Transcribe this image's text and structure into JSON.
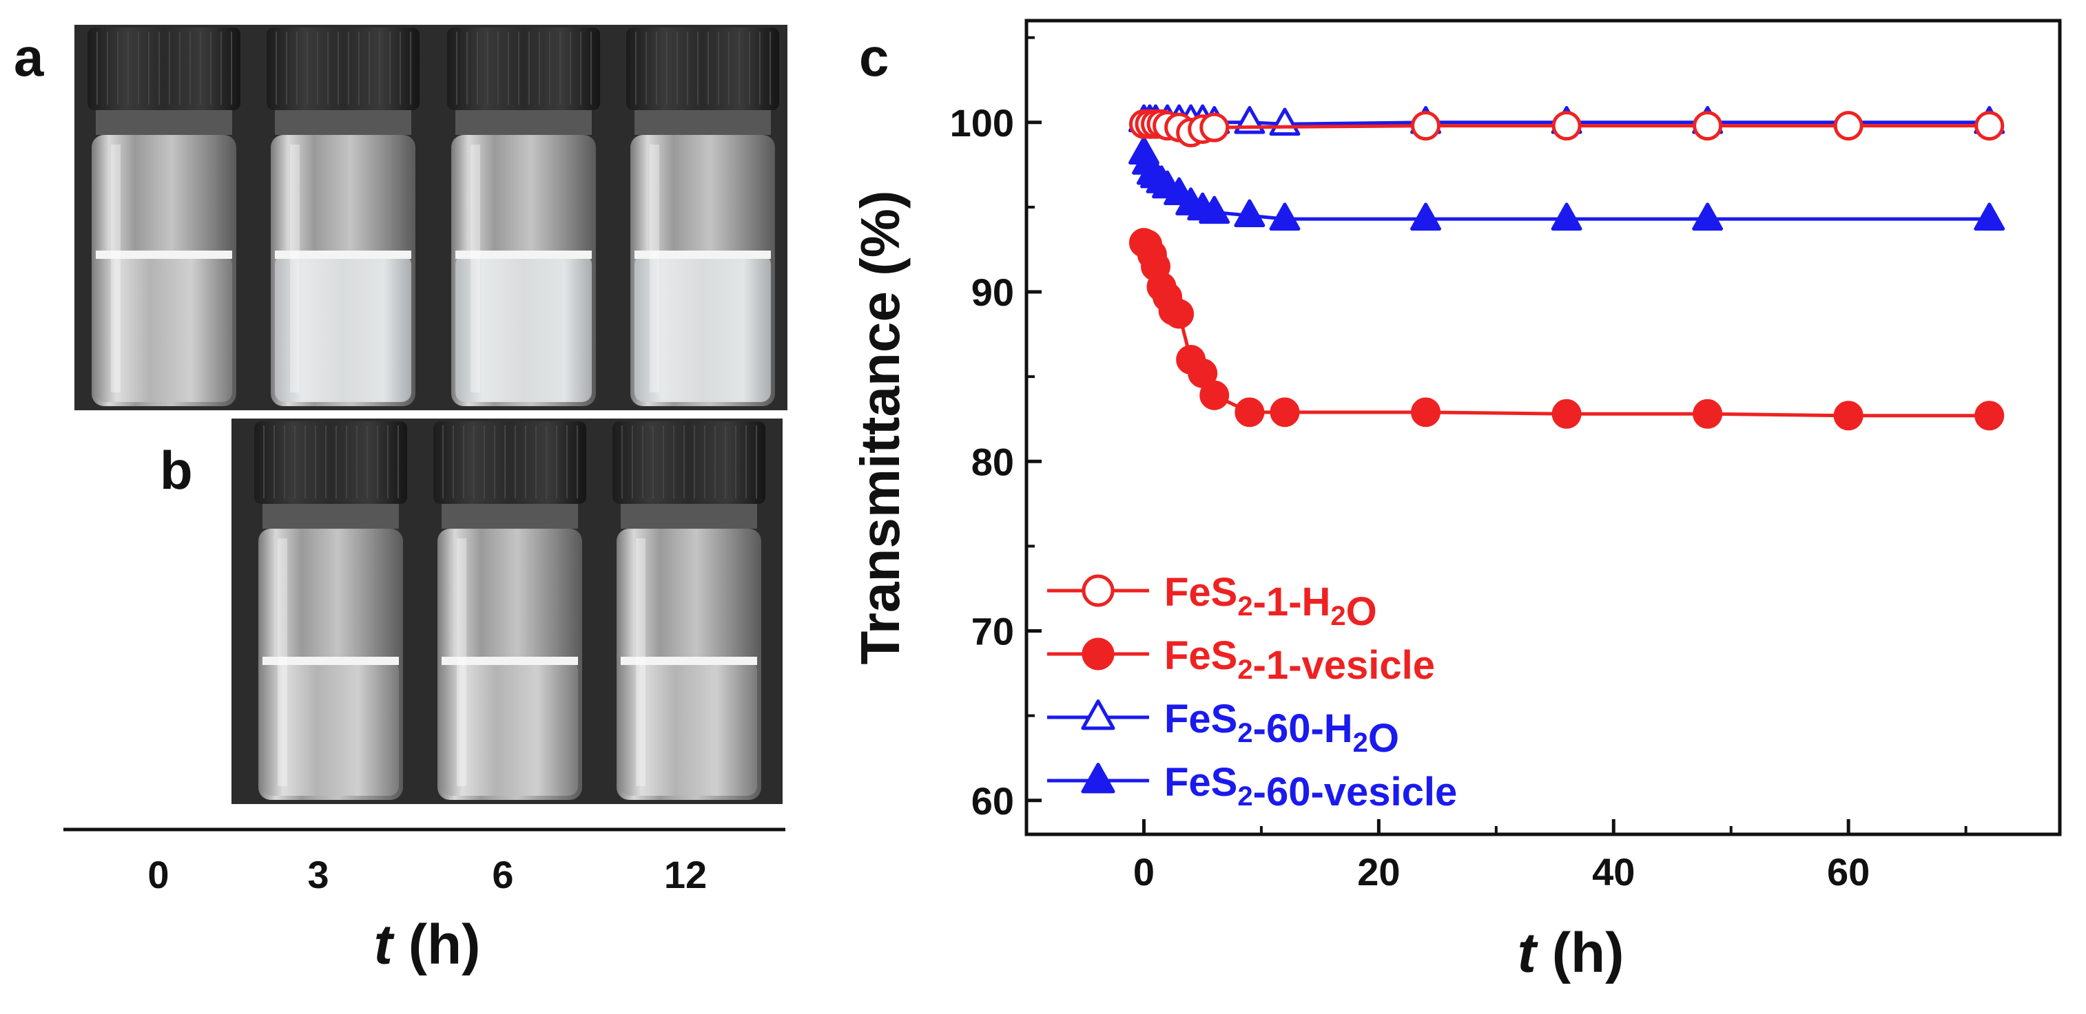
{
  "panels": {
    "a": {
      "label": "a",
      "vial_times": [
        "0",
        "3",
        "6",
        "12"
      ]
    },
    "b": {
      "label": "b",
      "vial_times": [
        "3",
        "6",
        "12"
      ]
    },
    "c": {
      "label": "c"
    }
  },
  "photo_axis": {
    "ticks": [
      "0",
      "3",
      "6",
      "12"
    ],
    "xlabel_var": "t",
    "xlabel_unit": " (h)"
  },
  "chart_data": {
    "type": "line",
    "title": "",
    "xlabel_var": "t",
    "xlabel_unit": " (h)",
    "ylabel": "Transmittance (%)",
    "xlim": [
      -10,
      78
    ],
    "ylim": [
      58,
      106
    ],
    "xticks": [
      0,
      20,
      40,
      60
    ],
    "yticks": [
      60,
      70,
      80,
      90,
      100
    ],
    "series": [
      {
        "name_main": "FeS",
        "name_sub": "2",
        "name_rest": "-1-H",
        "name_sub2": "2",
        "name_end": "O",
        "color": "#ee2222",
        "marker": "circle-open",
        "x": [
          0,
          0.5,
          1,
          1.5,
          2,
          3,
          4,
          5,
          6,
          24,
          36,
          48,
          60,
          72
        ],
        "y": [
          99.9,
          99.9,
          99.9,
          99.9,
          99.8,
          99.7,
          99.4,
          99.6,
          99.7,
          99.8,
          99.8,
          99.8,
          99.8,
          99.8
        ]
      },
      {
        "name_main": "FeS",
        "name_sub": "2",
        "name_rest": "-1-vesicle",
        "name_sub2": "",
        "name_end": "",
        "color": "#ee2222",
        "marker": "circle-filled",
        "x": [
          0,
          0.3,
          0.7,
          1,
          1.5,
          2,
          2.5,
          3,
          4,
          5,
          6,
          9,
          12,
          24,
          36,
          48,
          60,
          72
        ],
        "y": [
          92.9,
          92.8,
          92.2,
          91.5,
          90.3,
          89.7,
          88.9,
          88.7,
          86.0,
          85.2,
          83.9,
          82.9,
          82.9,
          82.9,
          82.8,
          82.8,
          82.7,
          82.7
        ]
      },
      {
        "name_main": "FeS",
        "name_sub": "2",
        "name_rest": "-60-H",
        "name_sub2": "2",
        "name_end": "O",
        "color": "#1a1aee",
        "marker": "triangle-open",
        "x": [
          0,
          0.5,
          1,
          2,
          3,
          4,
          5,
          6,
          9,
          12,
          24,
          36,
          48,
          72
        ],
        "y": [
          100.1,
          100.1,
          100.1,
          100.1,
          100.1,
          100.1,
          100.1,
          100.0,
          100.0,
          99.9,
          100.0,
          100.0,
          100.0,
          100.0
        ]
      },
      {
        "name_main": "FeS",
        "name_sub": "2",
        "name_rest": "-60-vesicle",
        "name_sub2": "",
        "name_end": "",
        "color": "#1a1aee",
        "marker": "triangle-filled",
        "x": [
          0,
          0.3,
          0.7,
          1,
          1.5,
          2,
          3,
          4,
          5,
          6,
          9,
          12,
          24,
          36,
          48,
          72
        ],
        "y": [
          98.2,
          97.6,
          97.0,
          96.8,
          96.5,
          96.2,
          95.8,
          95.2,
          94.9,
          94.7,
          94.5,
          94.3,
          94.3,
          94.3,
          94.3,
          94.3
        ]
      }
    ]
  }
}
